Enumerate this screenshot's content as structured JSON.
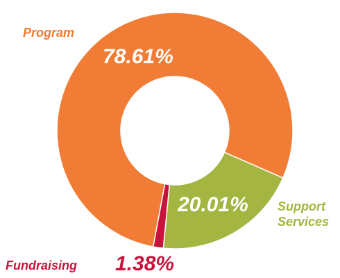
{
  "chart_data": {
    "type": "pie",
    "categories": [
      "Program",
      "Support Services",
      "Fundraising"
    ],
    "values": [
      78.61,
      20.01,
      1.38
    ],
    "value_labels": [
      "78.61%",
      "20.01%",
      "1.38%"
    ],
    "colors": [
      "#f07c35",
      "#a4b541",
      "#c8143c"
    ]
  }
}
